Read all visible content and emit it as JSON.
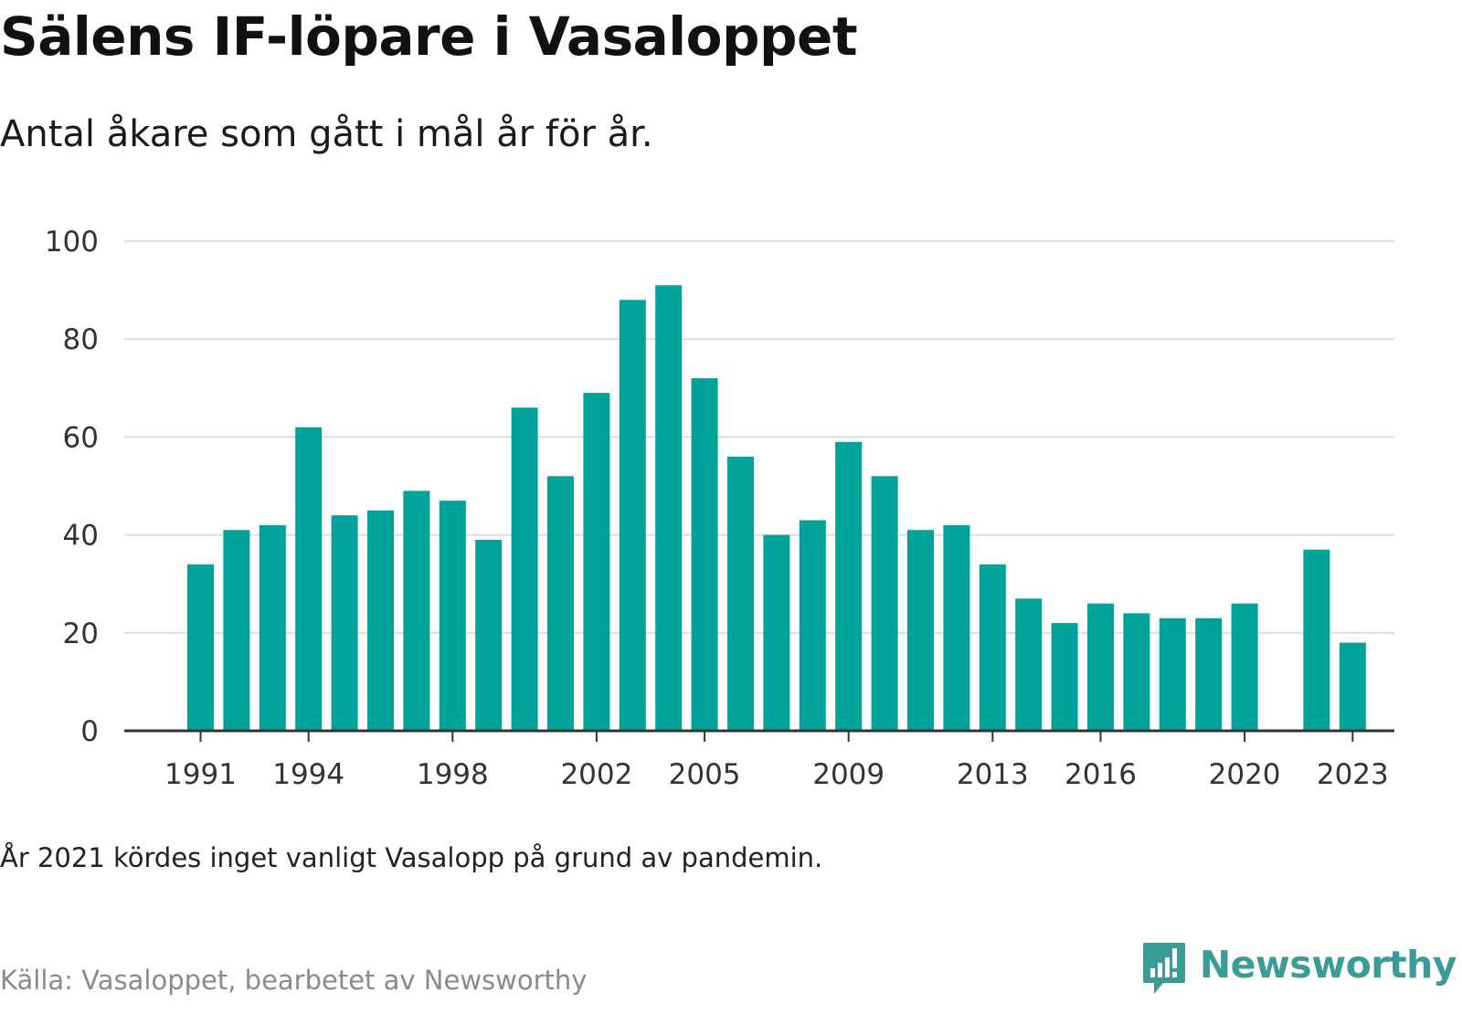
{
  "title": "Sälens IF-löpare i Vasaloppet",
  "subtitle": "Antal åkare som gått i mål år för år.",
  "note": "År 2021 kördes inget vanligt Vasalopp på grund av pandemin.",
  "source": "Källa: Vasaloppet, bearbetet av Newsworthy",
  "brand": {
    "name": "Newsworthy",
    "icon": "newsworthy-logo-icon",
    "color": "#3a9c96"
  },
  "chart_data": {
    "type": "bar",
    "title": "Sälens IF-löpare i Vasaloppet",
    "subtitle": "Antal åkare som gått i mål år för år.",
    "xlabel": "",
    "ylabel": "",
    "ylim": [
      0,
      100
    ],
    "yticks": [
      0,
      20,
      40,
      60,
      80,
      100
    ],
    "xticks": [
      1991,
      1994,
      1998,
      2002,
      2005,
      2009,
      2013,
      2016,
      2020,
      2023
    ],
    "grid": true,
    "bar_color": "#00a39a",
    "categories": [
      1991,
      1992,
      1993,
      1994,
      1995,
      1996,
      1997,
      1998,
      1999,
      2000,
      2001,
      2002,
      2003,
      2004,
      2005,
      2006,
      2007,
      2008,
      2009,
      2010,
      2011,
      2012,
      2013,
      2014,
      2015,
      2016,
      2017,
      2018,
      2019,
      2020,
      2021,
      2022,
      2023
    ],
    "values": [
      34,
      41,
      42,
      62,
      44,
      45,
      49,
      47,
      39,
      66,
      52,
      69,
      88,
      91,
      72,
      56,
      40,
      43,
      59,
      52,
      41,
      42,
      34,
      27,
      22,
      26,
      24,
      23,
      23,
      26,
      null,
      37,
      18
    ]
  }
}
